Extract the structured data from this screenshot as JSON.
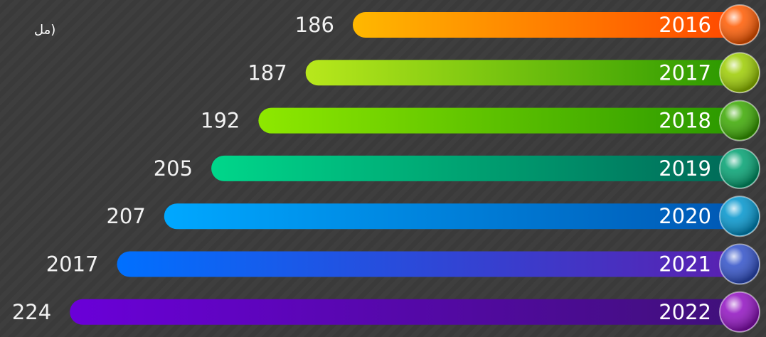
{
  "note": "(مل",
  "items": [
    {
      "year": "2016",
      "value": "186",
      "colors": [
        "#ffb800",
        "#ff4800"
      ],
      "ball": "#ff5a00"
    },
    {
      "year": "2017",
      "value": "187",
      "colors": [
        "#b8e81c",
        "#2a9800"
      ],
      "ball": "#9ccc00"
    },
    {
      "year": "2018",
      "value": "192",
      "colors": [
        "#8ee800",
        "#2a9800"
      ],
      "ball": "#3aa800"
    },
    {
      "year": "2019",
      "value": "205",
      "colors": [
        "#00d68a",
        "#006a58"
      ],
      "ball": "#00a070"
    },
    {
      "year": "2020",
      "value": "207",
      "colors": [
        "#00a8ff",
        "#0058b4"
      ],
      "ball": "#0094cc"
    },
    {
      "year": "2021",
      "value": "2017",
      "colors": [
        "#0070ff",
        "#5a20b0"
      ],
      "ball": "#3050c8"
    },
    {
      "year": "2022",
      "value": "224",
      "colors": [
        "#6a00d8",
        "#40107a"
      ],
      "ball": "#9010c0"
    }
  ]
}
